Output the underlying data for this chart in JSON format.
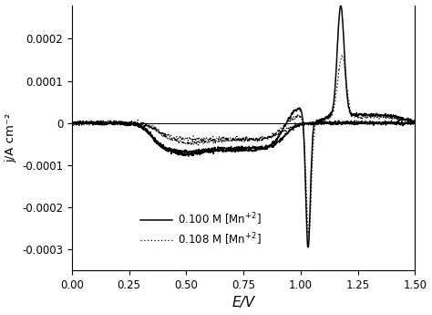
{
  "xlabel": "E/V",
  "ylabel": "j/A cm⁻²",
  "xlim": [
    0,
    1.5
  ],
  "ylim": [
    -0.00035,
    0.00028
  ],
  "yticks": [
    -0.0003,
    -0.0002,
    -0.0001,
    0,
    0.0001,
    0.0002
  ],
  "xticks": [
    0,
    0.25,
    0.5,
    0.75,
    1.0,
    1.25,
    1.5
  ],
  "legend_labels": [
    "0.100 M [Mn$^{+2}$]",
    "0.108 M [Mn$^{+2}$]"
  ],
  "background_color": "#ffffff",
  "line_color": "#000000",
  "figsize": [
    4.74,
    3.45
  ],
  "dpi": 100
}
